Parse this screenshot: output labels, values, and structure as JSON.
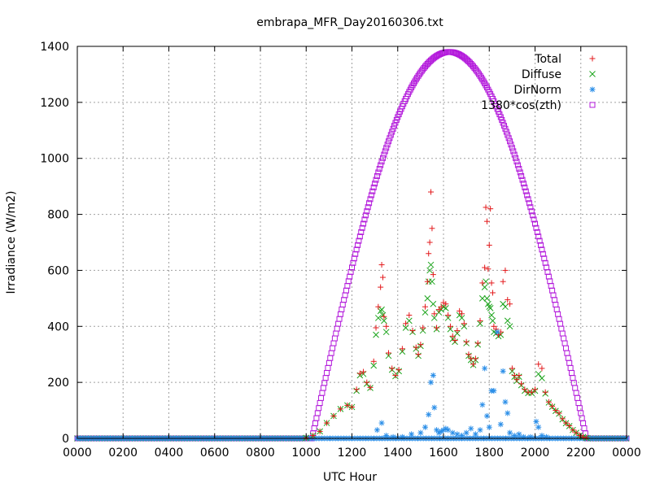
{
  "chart_data": {
    "type": "scatter",
    "title": "embrapa_MFR_Day20160306.txt",
    "xlabel": "UTC Hour",
    "ylabel": "Irradiance (W/m2)",
    "xlim": [
      0,
      24
    ],
    "ylim": [
      0,
      1400
    ],
    "x_ticks": [
      {
        "value": 0,
        "label": "0000"
      },
      {
        "value": 2,
        "label": "0200"
      },
      {
        "value": 4,
        "label": "0400"
      },
      {
        "value": 6,
        "label": "0600"
      },
      {
        "value": 8,
        "label": "0800"
      },
      {
        "value": 10,
        "label": "1000"
      },
      {
        "value": 12,
        "label": "1200"
      },
      {
        "value": 14,
        "label": "1400"
      },
      {
        "value": 16,
        "label": "1600"
      },
      {
        "value": 18,
        "label": "1800"
      },
      {
        "value": 20,
        "label": "2000"
      },
      {
        "value": 22,
        "label": "2200"
      },
      {
        "value": 24,
        "label": "0000"
      }
    ],
    "y_ticks": [
      {
        "value": 0,
        "label": "0"
      },
      {
        "value": 200,
        "label": "200"
      },
      {
        "value": 400,
        "label": "400"
      },
      {
        "value": 600,
        "label": "600"
      },
      {
        "value": 800,
        "label": "800"
      },
      {
        "value": 1000,
        "label": "1000"
      },
      {
        "value": 1200,
        "label": "1200"
      },
      {
        "value": 1400,
        "label": "1400"
      }
    ],
    "grid": true,
    "legend_position": "top-right",
    "series": [
      {
        "name": "Total",
        "marker": "plus",
        "color": "#e31a1c",
        "x": [
          10.0,
          10.3,
          10.6,
          10.9,
          11.2,
          11.5,
          11.8,
          12.0,
          12.2,
          12.35,
          12.5,
          12.65,
          12.8,
          12.95,
          13.05,
          13.15,
          13.25,
          13.3,
          13.35,
          13.4,
          13.5,
          13.6,
          13.75,
          13.9,
          14.05,
          14.2,
          14.35,
          14.5,
          14.65,
          14.8,
          14.9,
          15.0,
          15.1,
          15.2,
          15.3,
          15.35,
          15.4,
          15.45,
          15.5,
          15.55,
          15.6,
          15.7,
          15.8,
          15.9,
          16.0,
          16.1,
          16.2,
          16.3,
          16.4,
          16.5,
          16.6,
          16.7,
          16.8,
          16.9,
          17.0,
          17.1,
          17.2,
          17.3,
          17.4,
          17.5,
          17.6,
          17.7,
          17.8,
          17.85,
          17.9,
          17.95,
          18.0,
          18.05,
          18.1,
          18.15,
          18.2,
          18.3,
          18.4,
          18.5,
          18.6,
          18.7,
          18.8,
          18.9,
          19.0,
          19.1,
          19.2,
          19.3,
          19.4,
          19.55,
          19.7,
          19.85,
          20.0,
          20.15,
          20.3,
          20.45,
          20.6,
          20.75,
          20.9,
          21.05,
          21.2,
          21.35,
          21.5,
          21.65,
          21.8,
          21.95,
          22.1,
          22.25
        ],
        "y": [
          2,
          10,
          25,
          55,
          80,
          105,
          118,
          112,
          175,
          232,
          238,
          200,
          182,
          275,
          395,
          470,
          540,
          620,
          575,
          435,
          400,
          305,
          250,
          225,
          245,
          320,
          410,
          440,
          385,
          325,
          300,
          335,
          395,
          470,
          560,
          660,
          700,
          880,
          750,
          585,
          445,
          395,
          460,
          470,
          485,
          480,
          440,
          400,
          365,
          350,
          385,
          455,
          445,
          410,
          345,
          300,
          285,
          265,
          285,
          340,
          420,
          555,
          610,
          825,
          775,
          605,
          690,
          820,
          555,
          520,
          400,
          390,
          370,
          380,
          560,
          600,
          495,
          480,
          250,
          225,
          210,
          225,
          195,
          175,
          165,
          165,
          175,
          265,
          250,
          165,
          130,
          115,
          100,
          90,
          70,
          55,
          45,
          30,
          20,
          10,
          5,
          2
        ]
      },
      {
        "name": "Diffuse",
        "marker": "cross",
        "color": "#1aa31a",
        "x": [
          10.0,
          10.3,
          10.6,
          10.9,
          11.2,
          11.5,
          11.8,
          12.0,
          12.2,
          12.35,
          12.5,
          12.65,
          12.8,
          12.95,
          13.05,
          13.15,
          13.25,
          13.3,
          13.35,
          13.4,
          13.5,
          13.6,
          13.75,
          13.9,
          14.05,
          14.2,
          14.35,
          14.5,
          14.65,
          14.8,
          14.9,
          15.0,
          15.1,
          15.2,
          15.3,
          15.35,
          15.4,
          15.45,
          15.5,
          15.55,
          15.6,
          15.7,
          15.8,
          15.9,
          16.0,
          16.1,
          16.2,
          16.3,
          16.4,
          16.5,
          16.6,
          16.7,
          16.8,
          16.9,
          17.0,
          17.1,
          17.2,
          17.3,
          17.4,
          17.5,
          17.6,
          17.7,
          17.8,
          17.85,
          17.9,
          17.95,
          18.0,
          18.05,
          18.1,
          18.15,
          18.2,
          18.3,
          18.4,
          18.5,
          18.6,
          18.7,
          18.8,
          18.9,
          19.0,
          19.1,
          19.2,
          19.3,
          19.4,
          19.55,
          19.7,
          19.85,
          20.0,
          20.15,
          20.3,
          20.45,
          20.6,
          20.75,
          20.9,
          21.05,
          21.2,
          21.35,
          21.5,
          21.65,
          21.8,
          21.95,
          22.1,
          22.25
        ],
        "y": [
          2,
          10,
          25,
          55,
          80,
          105,
          118,
          112,
          170,
          225,
          230,
          195,
          180,
          260,
          370,
          430,
          455,
          460,
          440,
          420,
          380,
          295,
          245,
          222,
          240,
          310,
          395,
          420,
          380,
          320,
          295,
          330,
          385,
          450,
          500,
          560,
          600,
          620,
          560,
          480,
          430,
          390,
          450,
          460,
          470,
          465,
          430,
          390,
          355,
          345,
          375,
          440,
          430,
          400,
          340,
          295,
          280,
          262,
          280,
          335,
          410,
          500,
          540,
          560,
          500,
          480,
          470,
          465,
          440,
          420,
          380,
          375,
          365,
          370,
          480,
          470,
          420,
          400,
          240,
          220,
          205,
          220,
          190,
          170,
          162,
          162,
          170,
          230,
          215,
          160,
          128,
          113,
          98,
          88,
          68,
          54,
          44,
          30,
          20,
          10,
          5,
          2
        ]
      },
      {
        "name": "DirNorm",
        "marker": "star",
        "color": "#2a8ee8",
        "x": [
          13.1,
          13.3,
          13.5,
          13.8,
          14.2,
          14.6,
          15.0,
          15.2,
          15.35,
          15.45,
          15.55,
          15.6,
          15.7,
          15.8,
          15.9,
          16.0,
          16.1,
          16.2,
          16.4,
          16.6,
          16.8,
          17.0,
          17.2,
          17.4,
          17.6,
          17.7,
          17.8,
          17.9,
          18.0,
          18.1,
          18.2,
          18.35,
          18.5,
          18.6,
          18.7,
          18.8,
          18.9,
          19.1,
          19.3,
          19.5,
          19.8,
          20.05,
          20.15,
          20.3,
          20.5
        ],
        "y": [
          30,
          55,
          10,
          5,
          5,
          15,
          20,
          40,
          85,
          200,
          225,
          110,
          30,
          20,
          25,
          30,
          35,
          30,
          20,
          15,
          10,
          20,
          35,
          15,
          30,
          120,
          250,
          80,
          40,
          170,
          170,
          380,
          50,
          240,
          130,
          90,
          20,
          10,
          15,
          5,
          5,
          60,
          40,
          10,
          5
        ]
      },
      {
        "name": "1380*cos(zth)",
        "marker": "square",
        "color": "#b31adb",
        "equation": "1380*cos(zth)",
        "peak": 1380,
        "peak_time": 16.25,
        "sunrise": 10.25,
        "sunset": 22.25
      }
    ]
  }
}
